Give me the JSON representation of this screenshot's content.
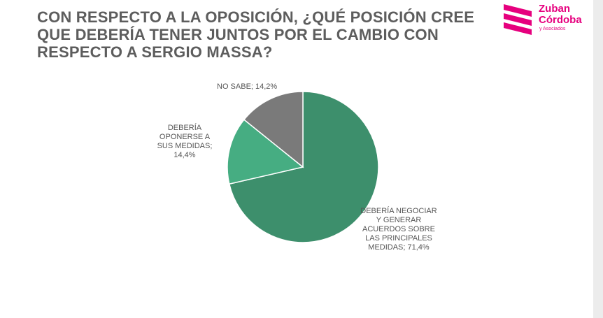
{
  "title": "CON RESPECTO A LA OPOSICIÓN, ¿QUÉ POSICIÓN CREE QUE DEBERÍA TENER JUNTOS POR EL CAMBIO CON RESPECTO A SERGIO MASSA?",
  "logo": {
    "line1": "Zuban",
    "line2": "Córdoba",
    "line3": "y Asociados",
    "color": "#e6007e"
  },
  "chart_data": {
    "type": "pie",
    "title": "CON RESPECTO A LA OPOSICIÓN, ¿QUÉ POSICIÓN CREE QUE DEBERÍA TENER JUNTOS POR EL CAMBIO CON RESPECTO A SERGIO MASSA?",
    "slices": [
      {
        "label": "DEBERÍA NEGOCIAR Y GENERAR ACUERDOS SOBRE LAS PRINCIPALES MEDIDAS; 71,4%",
        "value": 71.4,
        "color": "#3d8f6c"
      },
      {
        "label": "DEBERÍA OPONERSE A SUS MEDIDAS; 14,4%",
        "value": 14.4,
        "color": "#46ad82"
      },
      {
        "label": "NO SABE; 14,2%",
        "value": 14.2,
        "color": "#7a7a7a"
      }
    ]
  }
}
